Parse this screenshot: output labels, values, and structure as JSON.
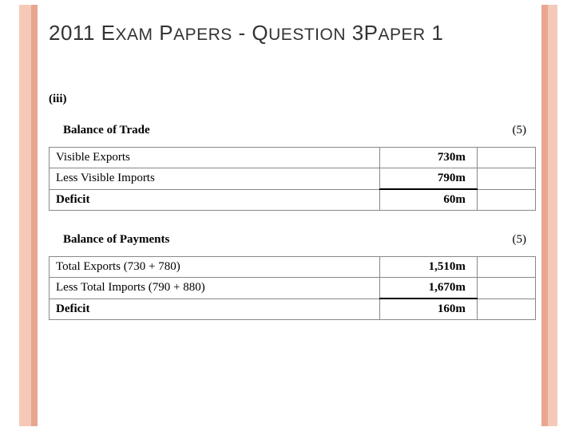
{
  "title": {
    "year": "2011",
    "word1a": "E",
    "word1b": "XAM",
    "word2a": "P",
    "word2b": "APERS",
    "dash": " - ",
    "word3a": "Q",
    "word3b": "UESTION",
    "num1": " 3",
    "word4a": "P",
    "word4b": "APER",
    "num2": " 1"
  },
  "part": "(iii)",
  "sections": [
    {
      "title": "Balance of Trade",
      "marks": "(5)",
      "rows": [
        {
          "label": "Visible Exports",
          "value": "730m",
          "deficit": false
        },
        {
          "label": "Less Visible Imports",
          "value": "790m",
          "deficit": false
        },
        {
          "label": "Deficit",
          "value": "60m",
          "deficit": true
        }
      ]
    },
    {
      "title": "Balance of Payments",
      "marks": "(5)",
      "rows": [
        {
          "label": "Total Exports (730 + 780)",
          "value": "1,510m",
          "deficit": false
        },
        {
          "label": "Less Total Imports (790 + 880)",
          "value": "1,670m",
          "deficit": false
        },
        {
          "label": "Deficit",
          "value": "160m",
          "deficit": true
        }
      ]
    }
  ]
}
